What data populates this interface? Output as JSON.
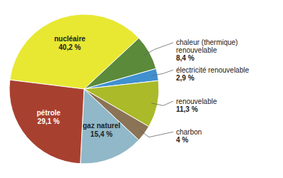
{
  "chart_data": {
    "type": "pie",
    "categories": [
      "nucléaire",
      "chaleur (thermique)\nrenouvelable",
      "électricité renouvelable",
      "renouvelable",
      "charbon",
      "gaz naturel",
      "pétrole"
    ],
    "values": [
      40.2,
      8.4,
      2.9,
      11.3,
      4,
      15.4,
      29.1
    ],
    "value_labels": [
      "40,2 %",
      "8,4 %",
      "2,9 %",
      "11,3 %",
      "4 %",
      "15,4 %",
      "29,1 %"
    ],
    "colors": [
      "#e8e832",
      "#5a8a3a",
      "#4090d0",
      "#aaba28",
      "#8b7355",
      "#90b8c8",
      "#a84030"
    ]
  }
}
